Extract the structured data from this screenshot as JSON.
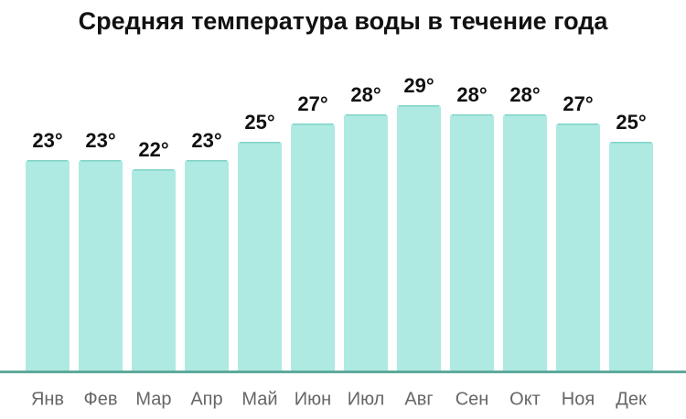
{
  "chart_data": {
    "type": "bar",
    "title": "Средняя температура воды в течение года",
    "categories": [
      "Янв",
      "Фев",
      "Мар",
      "Апр",
      "Май",
      "Июн",
      "Июл",
      "Авг",
      "Сен",
      "Окт",
      "Ноя",
      "Дек"
    ],
    "values": [
      23,
      23,
      22,
      23,
      25,
      27,
      28,
      29,
      28,
      28,
      27,
      25
    ],
    "value_labels": [
      "23°",
      "23°",
      "22°",
      "23°",
      "25°",
      "27°",
      "28°",
      "29°",
      "28°",
      "28°",
      "27°",
      "25°"
    ],
    "color": "#aeeae2"
  }
}
